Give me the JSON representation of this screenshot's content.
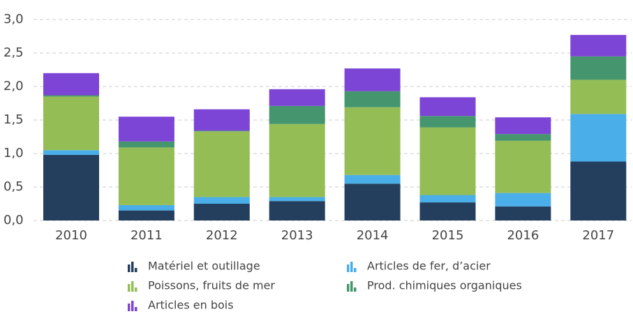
{
  "chart_data": {
    "type": "bar",
    "stacked": true,
    "categories": [
      "2010",
      "2011",
      "2012",
      "2013",
      "2014",
      "2015",
      "2016",
      "2017"
    ],
    "series": [
      {
        "name": "Matériel et outillage",
        "color": "#243f5e",
        "values": [
          0.98,
          0.15,
          0.25,
          0.29,
          0.55,
          0.27,
          0.21,
          0.88
        ]
      },
      {
        "name": "Articles de fer, d’acier",
        "color": "#4aaee8",
        "values": [
          0.07,
          0.08,
          0.1,
          0.06,
          0.13,
          0.11,
          0.2,
          0.71
        ]
      },
      {
        "name": "Poissons, fruits de mer",
        "color": "#95bd55",
        "values": [
          0.8,
          0.86,
          0.98,
          1.09,
          1.01,
          1.01,
          0.78,
          0.51
        ]
      },
      {
        "name": "Prod. chimiques organiques",
        "color": "#45966e",
        "values": [
          0.02,
          0.09,
          0.01,
          0.27,
          0.24,
          0.17,
          0.1,
          0.35
        ]
      },
      {
        "name": "Articles en bois",
        "color": "#7d45d6",
        "values": [
          0.33,
          0.37,
          0.32,
          0.25,
          0.34,
          0.28,
          0.25,
          0.32
        ]
      }
    ],
    "ylim": [
      0,
      3
    ],
    "yticks": [
      {
        "value": 0,
        "label": "0,0"
      },
      {
        "value": 0.5,
        "label": "0,5"
      },
      {
        "value": 1,
        "label": "1,0"
      },
      {
        "value": 1.5,
        "label": "1,5"
      },
      {
        "value": 2,
        "label": "2,0"
      },
      {
        "value": 2.5,
        "label": "2,5"
      },
      {
        "value": 3,
        "label": "3,0"
      }
    ],
    "grid": true,
    "legend": "bottom"
  }
}
